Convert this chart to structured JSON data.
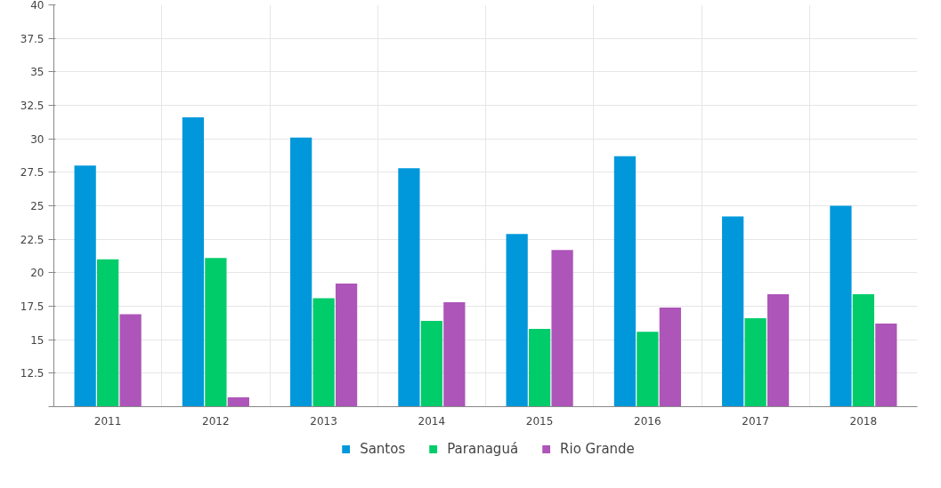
{
  "chart_data": {
    "type": "bar",
    "categories": [
      "2011",
      "2012",
      "2013",
      "2014",
      "2015",
      "2016",
      "2017",
      "2018"
    ],
    "series": [
      {
        "name": "Santos",
        "color": "#0098db",
        "values": [
          28.0,
          31.6,
          30.1,
          27.8,
          22.9,
          28.7,
          24.2,
          25.0
        ]
      },
      {
        "name": "Paranaguá",
        "color": "#00cc6a",
        "values": [
          21.0,
          21.1,
          18.1,
          16.4,
          15.8,
          15.6,
          16.6,
          18.4
        ]
      },
      {
        "name": "Rio Grande",
        "color": "#ad55b8",
        "values": [
          16.9,
          10.7,
          19.2,
          17.8,
          21.7,
          17.4,
          18.4,
          16.2
        ]
      }
    ],
    "ylim": [
      10,
      40
    ],
    "yticks": [
      {
        "value": 10,
        "label": null
      },
      12.5,
      15,
      17.5,
      20,
      22.5,
      25,
      27.5,
      30,
      32.5,
      35,
      37.5,
      40
    ],
    "grid": true,
    "legend": "bottom"
  }
}
